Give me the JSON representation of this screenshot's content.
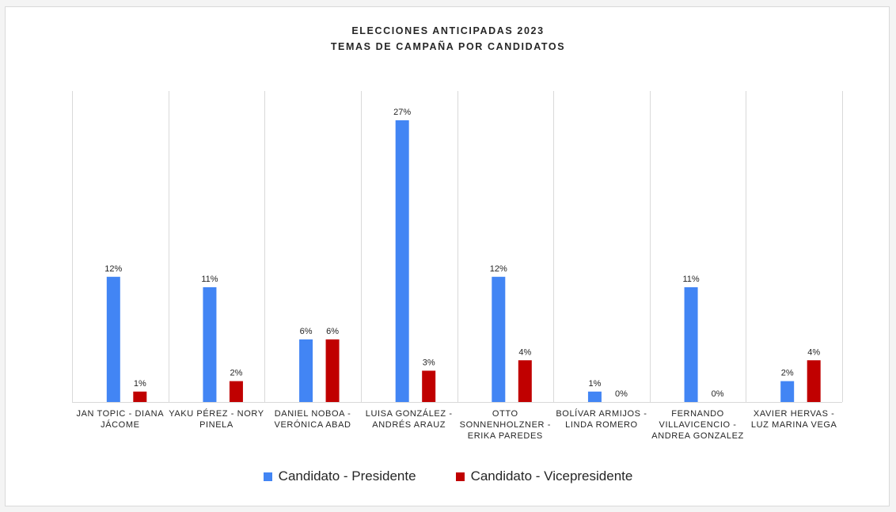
{
  "chart_data": {
    "type": "bar",
    "title": "ELECCIONES ANTICIPADAS 2023",
    "subtitle": "TEMAS DE CAMPAÑA POR CANDIDATOS",
    "xlabel": "",
    "ylabel": "",
    "ylim": [
      0,
      27
    ],
    "grid": "vertical category separators",
    "legend_position": "bottom",
    "categories": [
      [
        "JAN TOPIC - DIANA",
        "JÁCOME"
      ],
      [
        "YAKU PÉREZ - NORY",
        "PINELA"
      ],
      [
        "DANIEL NOBOA -",
        "VERÓNICA ABAD"
      ],
      [
        "LUISA GONZÁLEZ -",
        "ANDRÉS ARAUZ"
      ],
      [
        "OTTO",
        "SONNENHOLZNER -",
        "ERIKA PAREDES"
      ],
      [
        "BOLÍVAR ARMIJOS -",
        "LINDA ROMERO"
      ],
      [
        "FERNANDO",
        "VILLAVICENCIO -",
        "ANDREA GONZALEZ"
      ],
      [
        "XAVIER HERVAS -",
        "LUZ MARINA VEGA"
      ]
    ],
    "series": [
      {
        "name": "Candidato - Presidente",
        "color": "#4285f4",
        "values": [
          12,
          11,
          6,
          27,
          12,
          1,
          11,
          2
        ],
        "labels": [
          "12%",
          "11%",
          "6%",
          "27%",
          "12%",
          "1%",
          "11%",
          "2%"
        ]
      },
      {
        "name": "Candidato - Vicepresidente",
        "color": "#c00000",
        "values": [
          1,
          2,
          6,
          3,
          4,
          0,
          0,
          4
        ],
        "labels": [
          "1%",
          "2%",
          "6%",
          "3%",
          "4%",
          "0%",
          "0%",
          "4%"
        ]
      }
    ]
  }
}
